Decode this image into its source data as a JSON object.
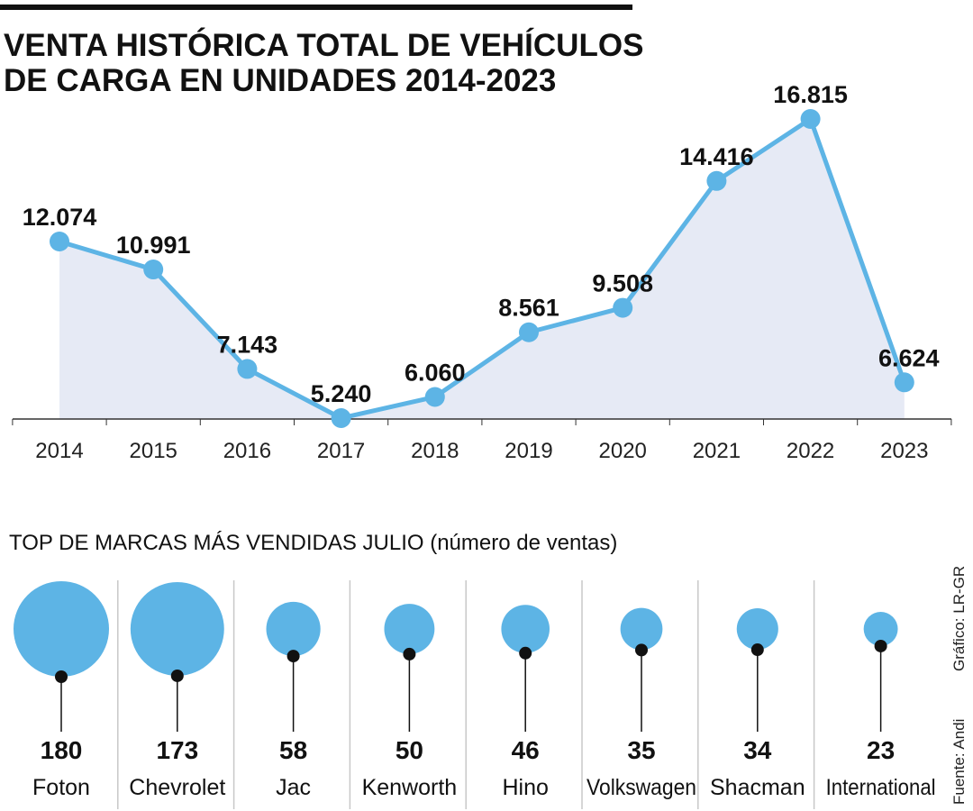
{
  "title_lines": [
    "VENTA HISTÓRICA TOTAL DE VEHÍCULOS",
    "DE CARGA EN UNIDADES 2014-2023"
  ],
  "colors": {
    "line": "#5db4e5",
    "fill": "#e6eaf5",
    "bubble": "#5db4e5",
    "text": "#111111"
  },
  "chart_data": [
    {
      "type": "line",
      "title": "VENTA HISTÓRICA TOTAL DE VEHÍCULOS DE CARGA EN UNIDADES 2014-2023",
      "categories": [
        "2014",
        "2015",
        "2016",
        "2017",
        "2018",
        "2019",
        "2020",
        "2021",
        "2022",
        "2023"
      ],
      "values": [
        12074,
        10991,
        7143,
        5240,
        6060,
        8561,
        9508,
        14416,
        16815,
        6624
      ],
      "data_labels": [
        "12.074",
        "10.991",
        "7.143",
        "5.240",
        "6.060",
        "8.561",
        "9.508",
        "14.416",
        "16.815",
        "6.624"
      ],
      "area_fill": true,
      "grid": false
    },
    {
      "type": "bubble",
      "title": "TOP DE MARCAS MÁS VENDIDAS JULIO",
      "subtitle": "(número de ventas)",
      "categories": [
        "Foton",
        "Chevrolet",
        "Jac",
        "Kenworth",
        "Hino",
        "Volkswagen",
        "Shacman",
        "International"
      ],
      "values": [
        180,
        173,
        58,
        50,
        46,
        35,
        34,
        23
      ]
    }
  ],
  "source": "Fuente: Andi",
  "credit": "Gráfico: LR-GR"
}
